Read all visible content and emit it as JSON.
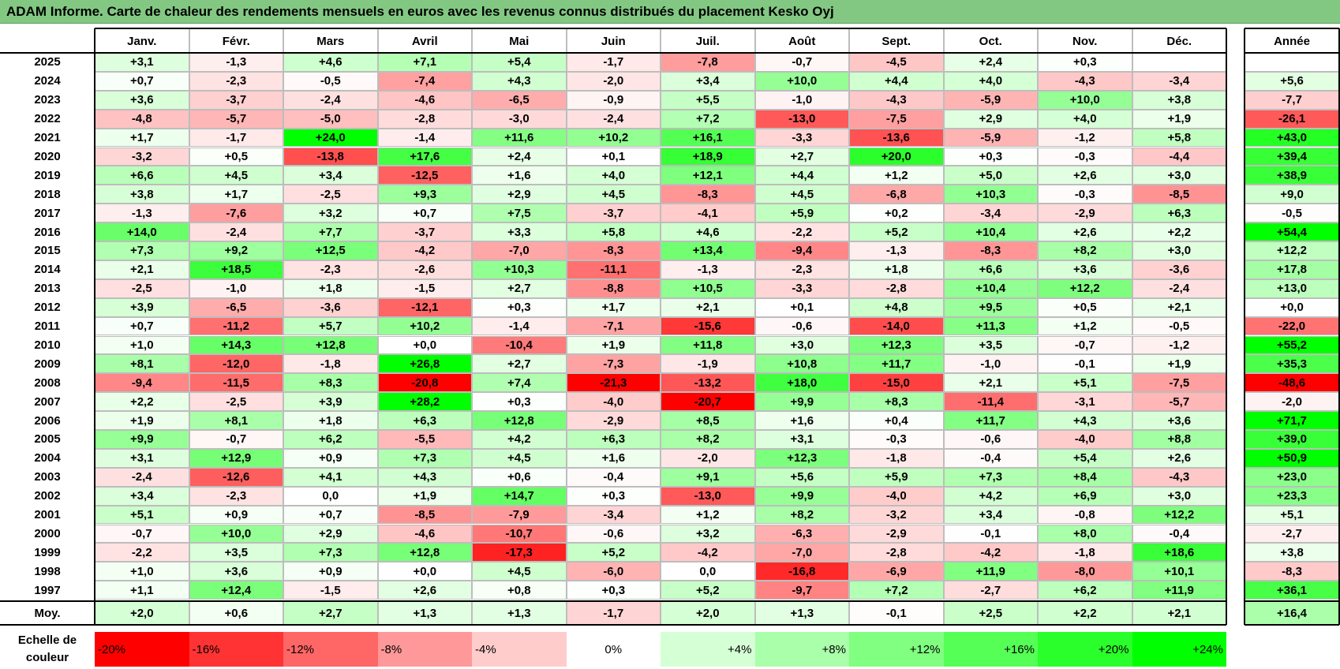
{
  "title": "ADAM Informe. Carte de chaleur des rendements mensuels en euros avec les revenus connus distribués du placement Kesko Oyj",
  "months": [
    "Janv.",
    "Févr.",
    "Mars",
    "Avril",
    "Mai",
    "Juin",
    "Juil.",
    "Août",
    "Sept.",
    "Oct.",
    "Nov.",
    "Déc."
  ],
  "year_header": "Année",
  "avg_label": "Moy.",
  "scale_label_1": "Echelle de",
  "scale_label_2": "couleur",
  "scale": [
    "-20%",
    "-16%",
    "-12%",
    "-8%",
    "-4%",
    "0%",
    "+4%",
    "+8%",
    "+12%",
    "+16%",
    "+20%",
    "+24%"
  ],
  "colors": {
    "negative": "#ff0000",
    "neutral": "#ffffff",
    "positive": "#00ff00",
    "title_bg": "#82c882"
  },
  "chart_data": {
    "type": "heatmap",
    "title": "ADAM Informe. Carte de chaleur des rendements mensuels en euros avec les revenus connus distribués du placement Kesko Oyj",
    "columns": [
      "Janv.",
      "Févr.",
      "Mars",
      "Avril",
      "Mai",
      "Juin",
      "Juil.",
      "Août",
      "Sept.",
      "Oct.",
      "Nov.",
      "Déc."
    ],
    "rows": [
      {
        "year": "2025",
        "values": [
          "+3,1",
          "-1,3",
          "+4,6",
          "+7,1",
          "+5,4",
          "-1,7",
          "-7,8",
          "-0,7",
          "-4,5",
          "+2,4",
          "+0,3",
          ""
        ],
        "annual": ""
      },
      {
        "year": "2024",
        "values": [
          "+0,7",
          "-2,3",
          "-0,5",
          "-7,4",
          "+4,3",
          "-2,0",
          "+3,4",
          "+10,0",
          "+4,4",
          "+4,0",
          "-4,3",
          "-3,4"
        ],
        "annual": "+5,6"
      },
      {
        "year": "2023",
        "values": [
          "+3,6",
          "-3,7",
          "-2,4",
          "-4,6",
          "-6,5",
          "-0,9",
          "+5,5",
          "-1,0",
          "-4,3",
          "-5,9",
          "+10,0",
          "+3,8"
        ],
        "annual": "-7,7"
      },
      {
        "year": "2022",
        "values": [
          "-4,8",
          "-5,7",
          "-5,0",
          "-2,8",
          "-3,0",
          "-2,4",
          "+7,2",
          "-13,0",
          "-7,5",
          "+2,9",
          "+4,0",
          "+1,9"
        ],
        "annual": "-26,1"
      },
      {
        "year": "2021",
        "values": [
          "+1,7",
          "-1,7",
          "+24,0",
          "-1,4",
          "+11,6",
          "+10,2",
          "+16,1",
          "-3,3",
          "-13,6",
          "-5,9",
          "-1,2",
          "+5,8"
        ],
        "annual": "+43,0"
      },
      {
        "year": "2020",
        "values": [
          "-3,2",
          "+0,5",
          "-13,8",
          "+17,6",
          "+2,4",
          "+0,1",
          "+18,9",
          "+2,7",
          "+20,0",
          "+0,3",
          "-0,3",
          "-4,4"
        ],
        "annual": "+39,4"
      },
      {
        "year": "2019",
        "values": [
          "+6,6",
          "+4,5",
          "+3,4",
          "-12,5",
          "+1,6",
          "+4,0",
          "+12,1",
          "+4,4",
          "+1,2",
          "+5,0",
          "+2,6",
          "+3,0"
        ],
        "annual": "+38,9"
      },
      {
        "year": "2018",
        "values": [
          "+3,8",
          "+1,7",
          "-2,5",
          "+9,3",
          "+2,9",
          "+4,5",
          "-8,3",
          "+4,5",
          "-6,8",
          "+10,3",
          "-0,3",
          "-8,5"
        ],
        "annual": "+9,0"
      },
      {
        "year": "2017",
        "values": [
          "-1,3",
          "-7,6",
          "+3,2",
          "+0,7",
          "+7,5",
          "-3,7",
          "-4,1",
          "+5,9",
          "+0,2",
          "-3,4",
          "-2,9",
          "+6,3"
        ],
        "annual": "-0,5"
      },
      {
        "year": "2016",
        "values": [
          "+14,0",
          "-2,4",
          "+7,7",
          "-3,7",
          "+3,3",
          "+5,8",
          "+4,6",
          "-2,2",
          "+5,2",
          "+10,4",
          "+2,6",
          "+2,2"
        ],
        "annual": "+54,4"
      },
      {
        "year": "2015",
        "values": [
          "+7,3",
          "+9,2",
          "+12,5",
          "-4,2",
          "-7,0",
          "-8,3",
          "+13,4",
          "-9,4",
          "-1,3",
          "-8,3",
          "+8,2",
          "+3,0"
        ],
        "annual": "+12,2"
      },
      {
        "year": "2014",
        "values": [
          "+2,1",
          "+18,5",
          "-2,3",
          "-2,6",
          "+10,3",
          "-11,1",
          "-1,3",
          "-2,3",
          "+1,8",
          "+6,6",
          "+3,6",
          "-3,6"
        ],
        "annual": "+17,8"
      },
      {
        "year": "2013",
        "values": [
          "-2,5",
          "-1,0",
          "+1,8",
          "-1,5",
          "+2,7",
          "-8,8",
          "+10,5",
          "-3,3",
          "-2,8",
          "+10,4",
          "+12,2",
          "-2,4"
        ],
        "annual": "+13,0"
      },
      {
        "year": "2012",
        "values": [
          "+3,9",
          "-6,5",
          "-3,6",
          "-12,1",
          "+0,3",
          "+1,7",
          "+2,1",
          "+0,1",
          "+4,8",
          "+9,5",
          "+0,5",
          "+2,1"
        ],
        "annual": "+0,0"
      },
      {
        "year": "2011",
        "values": [
          "+0,7",
          "-11,2",
          "+5,7",
          "+10,2",
          "-1,4",
          "-7,1",
          "-15,6",
          "-0,6",
          "-14,0",
          "+11,3",
          "+1,2",
          "-0,5"
        ],
        "annual": "-22,0"
      },
      {
        "year": "2010",
        "values": [
          "+1,0",
          "+14,3",
          "+12,8",
          "+0,0",
          "-10,4",
          "+1,9",
          "+11,8",
          "+3,0",
          "+12,3",
          "+3,5",
          "-0,7",
          "-1,2"
        ],
        "annual": "+55,2"
      },
      {
        "year": "2009",
        "values": [
          "+8,1",
          "-12,0",
          "-1,8",
          "+26,8",
          "+2,7",
          "-7,3",
          "-1,9",
          "+10,8",
          "+11,7",
          "-1,0",
          "-0,1",
          "+1,9"
        ],
        "annual": "+35,3"
      },
      {
        "year": "2008",
        "values": [
          "-9,4",
          "-11,5",
          "+8,3",
          "-20,8",
          "+7,4",
          "-21,3",
          "-13,2",
          "+18,0",
          "-15,0",
          "+2,1",
          "+5,1",
          "-7,5"
        ],
        "annual": "-48,6"
      },
      {
        "year": "2007",
        "values": [
          "+2,2",
          "-2,5",
          "+3,9",
          "+28,2",
          "+0,3",
          "-4,0",
          "-20,7",
          "+9,9",
          "+8,3",
          "-11,4",
          "-3,1",
          "-5,7"
        ],
        "annual": "-2,0"
      },
      {
        "year": "2006",
        "values": [
          "+1,9",
          "+8,1",
          "+1,8",
          "+6,3",
          "+12,8",
          "-2,9",
          "+8,5",
          "+1,6",
          "+0,4",
          "+11,7",
          "+4,3",
          "+3,6"
        ],
        "annual": "+71,7"
      },
      {
        "year": "2005",
        "values": [
          "+9,9",
          "-0,7",
          "+6,2",
          "-5,5",
          "+4,2",
          "+6,3",
          "+8,2",
          "+3,1",
          "-0,3",
          "-0,6",
          "-4,0",
          "+8,8"
        ],
        "annual": "+39,0"
      },
      {
        "year": "2004",
        "values": [
          "+3,1",
          "+12,9",
          "+0,9",
          "+7,3",
          "+4,5",
          "+1,6",
          "-2,0",
          "+12,3",
          "-1,8",
          "-0,4",
          "+5,4",
          "+2,6"
        ],
        "annual": "+50,9"
      },
      {
        "year": "2003",
        "values": [
          "-2,4",
          "-12,6",
          "+4,1",
          "+4,3",
          "+0,6",
          "-0,4",
          "+9,1",
          "+5,6",
          "+5,9",
          "+7,3",
          "+8,4",
          "-4,3"
        ],
        "annual": "+23,0"
      },
      {
        "year": "2002",
        "values": [
          "+3,4",
          "-2,3",
          "0,0",
          "+1,9",
          "+14,7",
          "+0,3",
          "-13,0",
          "+9,9",
          "-4,0",
          "+4,2",
          "+6,9",
          "+3,0"
        ],
        "annual": "+23,3"
      },
      {
        "year": "2001",
        "values": [
          "+5,1",
          "+0,9",
          "+0,7",
          "-8,5",
          "-7,9",
          "-3,4",
          "+1,2",
          "+8,2",
          "-3,2",
          "+3,4",
          "-0,8",
          "+12,2"
        ],
        "annual": "+5,1"
      },
      {
        "year": "2000",
        "values": [
          "-0,7",
          "+10,0",
          "+2,9",
          "-4,6",
          "-10,7",
          "-0,6",
          "+3,2",
          "-6,3",
          "-2,9",
          "-0,1",
          "+8,0",
          "-0,4"
        ],
        "annual": "-2,7"
      },
      {
        "year": "1999",
        "values": [
          "-2,2",
          "+3,5",
          "+7,3",
          "+12,8",
          "-17,3",
          "+5,2",
          "-4,2",
          "-7,0",
          "-2,8",
          "-4,2",
          "-1,8",
          "+18,6"
        ],
        "annual": "+3,8"
      },
      {
        "year": "1998",
        "values": [
          "+1,0",
          "+3,6",
          "+0,9",
          "+0,0",
          "+4,5",
          "-6,0",
          "0,0",
          "-16,8",
          "-6,9",
          "+11,9",
          "-8,0",
          "+10,1"
        ],
        "annual": "-8,3"
      },
      {
        "year": "1997",
        "values": [
          "+1,1",
          "+12,4",
          "-1,5",
          "+2,6",
          "+0,8",
          "+0,3",
          "+5,2",
          "-9,7",
          "+7,2",
          "-2,7",
          "+6,2",
          "+11,9"
        ],
        "annual": "+36,1"
      }
    ],
    "average": {
      "values": [
        "+2,0",
        "+0,6",
        "+2,7",
        "+1,3",
        "+1,3",
        "-1,7",
        "+2,0",
        "+1,3",
        "-0,1",
        "+2,5",
        "+2,2",
        "+2,1"
      ],
      "annual": "+16,4"
    },
    "monthly_color_range": [
      -20,
      24
    ],
    "annual_color_range": [
      -40,
      50
    ],
    "grid": true
  }
}
